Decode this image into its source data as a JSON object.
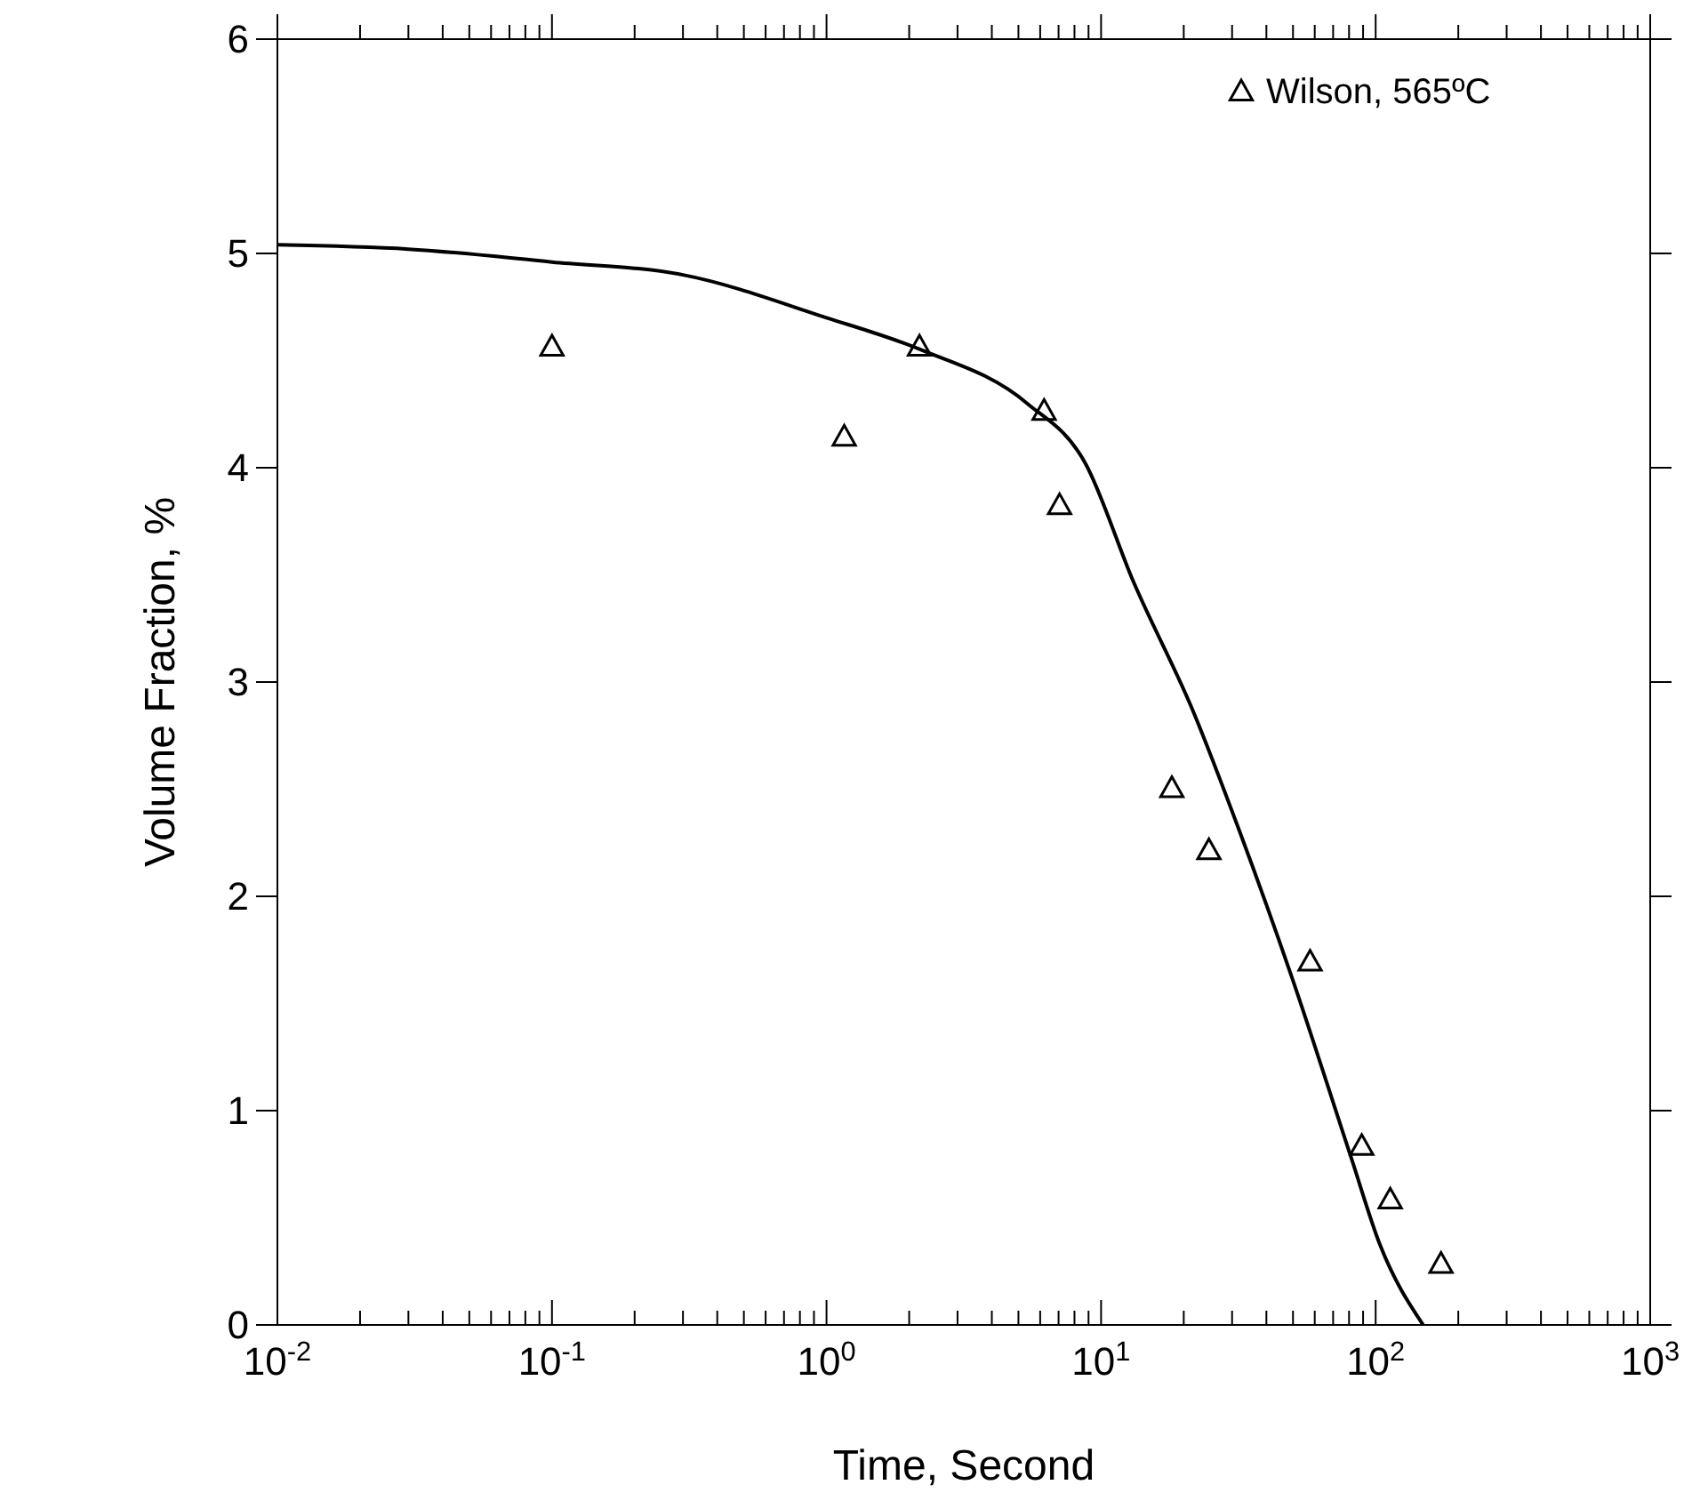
{
  "chart_data": {
    "type": "scatter",
    "xlabel": "Time, Second",
    "ylabel": "Volume Fraction, %",
    "log": "x",
    "xlim": [
      0.01,
      1000
    ],
    "ylim": [
      0,
      6
    ],
    "yticks": [
      0,
      1,
      2,
      3,
      4,
      5,
      6
    ],
    "xticks": [
      {
        "value": 0.01,
        "label": "10$^{-2}$"
      },
      {
        "value": 0.02,
        "label": null
      },
      {
        "value": 0.03,
        "label": null
      },
      {
        "value": 0.04,
        "label": null
      },
      {
        "value": 0.05,
        "label": null
      },
      {
        "value": 0.06,
        "label": null
      },
      {
        "value": 0.07,
        "label": null
      },
      {
        "value": 0.08,
        "label": null
      },
      {
        "value": 0.09,
        "label": null
      },
      {
        "value": 0.1,
        "label": "10$^{-1}$"
      },
      {
        "value": 0.2,
        "label": null
      },
      {
        "value": 0.3,
        "label": null
      },
      {
        "value": 0.4,
        "label": null
      },
      {
        "value": 0.5,
        "label": null
      },
      {
        "value": 0.6,
        "label": null
      },
      {
        "value": 0.7,
        "label": null
      },
      {
        "value": 0.8,
        "label": null
      },
      {
        "value": 0.9,
        "label": null
      },
      {
        "value": 1,
        "label": "10$^{0}$"
      },
      {
        "value": 2,
        "label": null
      },
      {
        "value": 3,
        "label": null
      },
      {
        "value": 4,
        "label": null
      },
      {
        "value": 5,
        "label": null
      },
      {
        "value": 6,
        "label": null
      },
      {
        "value": 7,
        "label": null
      },
      {
        "value": 8,
        "label": null
      },
      {
        "value": 9,
        "label": null
      },
      {
        "value": 10,
        "label": "10$^{1}$"
      },
      {
        "value": 20,
        "label": null
      },
      {
        "value": 30,
        "label": null
      },
      {
        "value": 40,
        "label": null
      },
      {
        "value": 50,
        "label": null
      },
      {
        "value": 60,
        "label": null
      },
      {
        "value": 70,
        "label": null
      },
      {
        "value": 80,
        "label": null
      },
      {
        "value": 90,
        "label": null
      },
      {
        "value": 100,
        "label": "10$^{2}$"
      },
      {
        "value": 200,
        "label": null
      },
      {
        "value": 300,
        "label": null
      },
      {
        "value": 400,
        "label": null
      },
      {
        "value": 500,
        "label": null
      },
      {
        "value": 600,
        "label": null
      },
      {
        "value": 700,
        "label": null
      },
      {
        "value": 800,
        "label": null
      },
      {
        "value": 900,
        "label": null
      },
      {
        "value": 1000,
        "label": "10$^{3}$"
      }
    ],
    "grid": false,
    "legend": "top right",
    "marker": "triangle",
    "series": [
      {
        "type": "line",
        "color": "#000000",
        "marker": "none",
        "line_style": "solid",
        "x": [
          0.01,
          0.03,
          0.1,
          0.3,
          1,
          2.21,
          5.38,
          8.77,
          13.1,
          21.7,
          31.8,
          49.6,
          81,
          104,
          149
        ],
        "values": [
          5.04,
          5.02,
          4.96,
          4.9,
          4.7,
          4.55,
          4.3,
          4.02,
          3.47,
          2.86,
          2.31,
          1.62,
          0.79,
          0.37,
          0
        ]
      },
      {
        "name": "Wilson, 565ºC",
        "color": "#000000",
        "x": [
          0.1,
          1.16,
          2.18,
          6.2,
          7.06,
          18.1,
          24.7,
          57.7,
          89,
          113,
          173
        ],
        "values": [
          4.56,
          4.14,
          4.56,
          4.26,
          3.82,
          2.5,
          2.21,
          1.69,
          0.83,
          0.58,
          0.28
        ]
      }
    ]
  }
}
